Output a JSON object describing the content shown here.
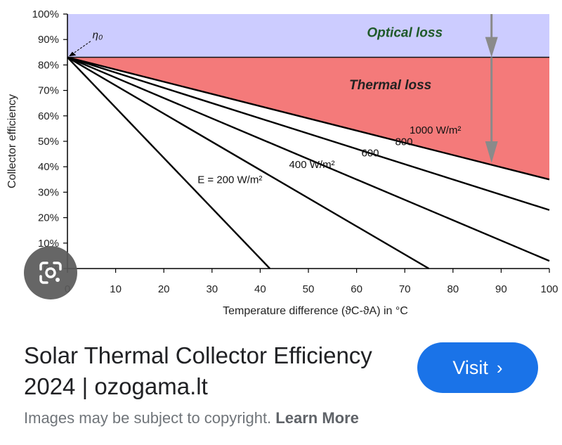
{
  "chart_data": {
    "type": "line",
    "xlabel": "Temperature difference (ϑC-ϑA) in °C",
    "ylabel": "Collector efficiency",
    "xlim": [
      0,
      100
    ],
    "ylim": [
      0,
      100
    ],
    "x_ticks": [
      "0",
      "10",
      "20",
      "30",
      "40",
      "50",
      "60",
      "70",
      "80",
      "90",
      "100"
    ],
    "y_ticks": [
      "0%",
      "10%",
      "20%",
      "30%",
      "40%",
      "50%",
      "60%",
      "70%",
      "80%",
      "90%",
      "100%"
    ],
    "eta0": 83,
    "eta0_label": "η₀",
    "regions": [
      {
        "name": "Optical loss",
        "color": "#ccccff"
      },
      {
        "name": "Thermal loss",
        "color": "#f47a7a"
      }
    ],
    "series": [
      {
        "label": "1000 W/m²",
        "x": [
          0,
          100
        ],
        "y": [
          83,
          35
        ]
      },
      {
        "label": "800",
        "x": [
          0,
          100
        ],
        "y": [
          83,
          23
        ]
      },
      {
        "label": "600",
        "x": [
          0,
          100
        ],
        "y": [
          83,
          3
        ]
      },
      {
        "label": "400 W/m²",
        "x": [
          0,
          75
        ],
        "y": [
          83,
          0
        ]
      },
      {
        "label": "E = 200 W/m²",
        "x": [
          0,
          42
        ],
        "y": [
          83,
          0
        ]
      }
    ],
    "grid": false
  },
  "overlay": {
    "lens_icon": "google-lens-icon"
  },
  "result": {
    "title": "Solar Thermal Collector Efficiency 2024 | ozogama.lt",
    "visit_label": "Visit",
    "visit_chevron": "›",
    "copyright_text": "Images may be subject to copyright.",
    "learn_more_label": "Learn More"
  }
}
